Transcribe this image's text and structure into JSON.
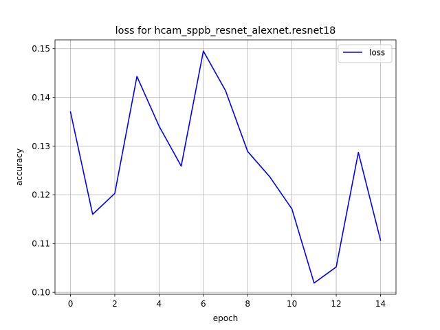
{
  "colors": {
    "series": "#0000ff",
    "grid": "#b0b0b0",
    "axes": "#000000",
    "legend_border": "#cccccc"
  },
  "chart_data": {
    "type": "line",
    "title": "loss for hcam_sppb_resnet_alexnet.resnet18",
    "xlabel": "epoch",
    "ylabel": "accuracy",
    "x": [
      0,
      1,
      2,
      3,
      4,
      5,
      6,
      7,
      8,
      9,
      10,
      11,
      12,
      13,
      14
    ],
    "series": [
      {
        "name": "loss",
        "values": [
          0.137,
          0.116,
          0.1203,
          0.1443,
          0.1341,
          0.1259,
          0.1495,
          0.1414,
          0.1289,
          0.1237,
          0.1171,
          0.1019,
          0.1052,
          0.1287,
          0.1107
        ]
      }
    ],
    "xlim": [
      -0.7,
      14.7
    ],
    "ylim": [
      0.0996,
      0.1518
    ],
    "xticks": [
      0,
      2,
      4,
      6,
      8,
      10,
      12,
      14
    ],
    "xtick_labels": [
      "0",
      "2",
      "4",
      "6",
      "8",
      "10",
      "12",
      "14"
    ],
    "yticks": [
      0.1,
      0.11,
      0.12,
      0.13,
      0.14,
      0.15
    ],
    "ytick_labels": [
      "0.10",
      "0.11",
      "0.12",
      "0.13",
      "0.14",
      "0.15"
    ],
    "grid": true,
    "legend_position": "upper right"
  }
}
